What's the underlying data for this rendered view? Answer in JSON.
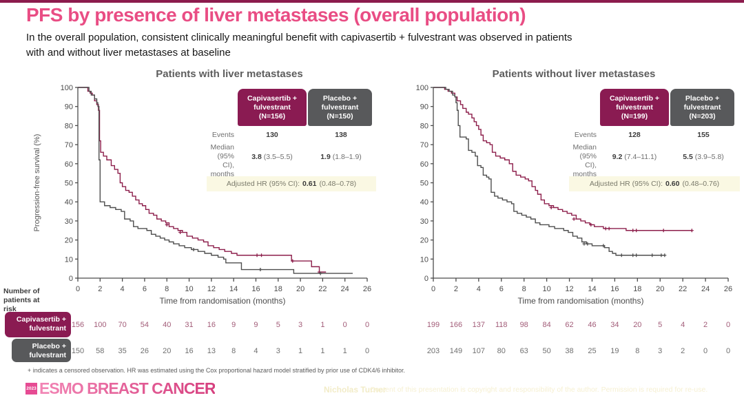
{
  "slide": {
    "title": "PFS by presence of liver metastases (overall population)",
    "subtitle": "In the overall population, consistent clinically meaningful benefit with capivasertib + fulvestrant was observed in patients\nwith and without liver metastases at baseline"
  },
  "colors": {
    "accent_maroon": "#8a1b52",
    "accent_gray": "#58595b",
    "title_pink": "#e94d84",
    "hr_band_bg": "#faf8e3",
    "logo_pink": "#e64b93"
  },
  "labels": {
    "number_at_risk": "Number of\npatients at risk",
    "arm1_box": "Capivasertib +\nfulvestrant",
    "arm2_box": "Placebo +\nfulvestrant"
  },
  "chart_data": [
    {
      "type": "line",
      "subtype": "kaplan-meier",
      "title": "Patients with liver metastases",
      "xlabel": "Time from randomisation (months)",
      "ylabel": "Progression-free survival (%)",
      "xlim": [
        0,
        26
      ],
      "ylim": [
        0,
        100
      ],
      "xticks": [
        0,
        2,
        4,
        6,
        8,
        10,
        12,
        14,
        16,
        18,
        20,
        22,
        24,
        26
      ],
      "yticks": [
        0,
        10,
        20,
        30,
        40,
        50,
        60,
        70,
        80,
        90,
        100
      ],
      "grid": false,
      "table": {
        "col1_header": "Capivasertib +\nfulvestrant\n(N=156)",
        "col2_header": "Placebo +\nfulvestrant\n(N=150)",
        "events_label": "Events",
        "events": [
          "130",
          "138"
        ],
        "median_label": "Median\n(95% CI),\nmonths",
        "median": [
          {
            "value": "3.8",
            "ci": "(3.5–5.5)"
          },
          {
            "value": "1.9",
            "ci": "(1.8–1.9)"
          }
        ],
        "hr_label": "Adjusted HR (95% CI):",
        "hr_value": "0.61",
        "hr_ci": "(0.48–0.78)"
      },
      "series": [
        {
          "name": "Capivasertib + fulvestrant",
          "color": "#8c1d4a",
          "points": [
            [
              0,
              100
            ],
            [
              0.7,
              100
            ],
            [
              0.9,
              98
            ],
            [
              1.1,
              97
            ],
            [
              1.3,
              96
            ],
            [
              1.5,
              93
            ],
            [
              1.7,
              91
            ],
            [
              1.85,
              88
            ],
            [
              1.95,
              72
            ],
            [
              2.05,
              66
            ],
            [
              2.3,
              64
            ],
            [
              2.6,
              62
            ],
            [
              3.0,
              59
            ],
            [
              3.3,
              57
            ],
            [
              3.6,
              55
            ],
            [
              3.8,
              50
            ],
            [
              4.0,
              48
            ],
            [
              4.3,
              46
            ],
            [
              4.6,
              45
            ],
            [
              4.9,
              43
            ],
            [
              5.2,
              41
            ],
            [
              5.5,
              39
            ],
            [
              5.8,
              38
            ],
            [
              6.1,
              36
            ],
            [
              6.4,
              34
            ],
            [
              6.8,
              33
            ],
            [
              7.1,
              31
            ],
            [
              7.5,
              30
            ],
            [
              7.9,
              29
            ],
            [
              8.2,
              27
            ],
            [
              8.6,
              26
            ],
            [
              9.0,
              25
            ],
            [
              9.4,
              24
            ],
            [
              9.8,
              22
            ],
            [
              10.3,
              21
            ],
            [
              10.8,
              20
            ],
            [
              11.3,
              19
            ],
            [
              11.7,
              17
            ],
            [
              12.2,
              16
            ],
            [
              12.7,
              15
            ],
            [
              13.2,
              14
            ],
            [
              13.8,
              13
            ],
            [
              14.3,
              12
            ],
            [
              19.0,
              12
            ],
            [
              19.2,
              9
            ],
            [
              20.9,
              9
            ],
            [
              21.0,
              6
            ],
            [
              21.6,
              6
            ],
            [
              21.7,
              3.2
            ],
            [
              22.3,
              3.2
            ]
          ],
          "censors": [
            [
              8.0,
              28
            ],
            [
              9.2,
              24
            ],
            [
              16.1,
              12
            ],
            [
              16.5,
              12
            ],
            [
              19.3,
              9
            ],
            [
              21.7,
              3.2
            ]
          ]
        },
        {
          "name": "Placebo + fulvestrant",
          "color": "#4d4d4d",
          "points": [
            [
              0,
              100
            ],
            [
              0.8,
              100
            ],
            [
              1.0,
              98
            ],
            [
              1.2,
              96
            ],
            [
              1.5,
              94
            ],
            [
              1.7,
              92
            ],
            [
              1.8,
              90
            ],
            [
              1.9,
              62
            ],
            [
              2.0,
              40
            ],
            [
              2.4,
              38
            ],
            [
              2.9,
              37
            ],
            [
              3.4,
              36
            ],
            [
              3.9,
              35
            ],
            [
              4.2,
              31
            ],
            [
              4.7,
              30
            ],
            [
              5.0,
              27
            ],
            [
              5.4,
              26
            ],
            [
              6.2,
              25
            ],
            [
              6.6,
              23
            ],
            [
              7.0,
              22
            ],
            [
              7.4,
              21
            ],
            [
              7.8,
              20
            ],
            [
              8.2,
              19
            ],
            [
              8.6,
              18
            ],
            [
              9.1,
              17
            ],
            [
              9.6,
              16
            ],
            [
              10.2,
              15
            ],
            [
              10.8,
              14
            ],
            [
              11.4,
              13
            ],
            [
              12.0,
              12
            ],
            [
              12.6,
              11
            ],
            [
              13.1,
              10
            ],
            [
              13.3,
              8
            ],
            [
              14.6,
              8
            ],
            [
              14.7,
              4.5
            ],
            [
              19.3,
              4.5
            ],
            [
              19.4,
              2.5
            ],
            [
              24.7,
              2.5
            ]
          ],
          "censors": [
            [
              10.4,
              15
            ],
            [
              16.4,
              4.5
            ],
            [
              21.8,
              2.5
            ]
          ]
        }
      ],
      "at_risk": {
        "rows": [
          {
            "name": "Capivasertib + fulvestrant",
            "color": "#a25c78",
            "counts": [
              "156",
              "100",
              "70",
              "54",
              "40",
              "31",
              "16",
              "9",
              "9",
              "5",
              "3",
              "1",
              "0",
              "0"
            ]
          },
          {
            "name": "Placebo + fulvestrant",
            "color": "#707070",
            "counts": [
              "150",
              "58",
              "35",
              "26",
              "20",
              "16",
              "13",
              "8",
              "4",
              "3",
              "1",
              "1",
              "1",
              "0"
            ]
          }
        ]
      }
    },
    {
      "type": "line",
      "subtype": "kaplan-meier",
      "title": "Patients without liver metastases",
      "xlabel": "Time from randomisation (months)",
      "ylabel": "",
      "xlim": [
        0,
        26
      ],
      "ylim": [
        0,
        100
      ],
      "xticks": [
        0,
        2,
        4,
        6,
        8,
        10,
        12,
        14,
        16,
        18,
        20,
        22,
        24,
        26
      ],
      "yticks": [
        0,
        10,
        20,
        30,
        40,
        50,
        60,
        70,
        80,
        90,
        100
      ],
      "grid": false,
      "table": {
        "col1_header": "Capivasertib +\nfulvestrant\n(N=199)",
        "col2_header": "Placebo +\nfulvestrant\n(N=203)",
        "events_label": "Events",
        "events": [
          "128",
          "155"
        ],
        "median_label": "Median\n(95% CI),\nmonths",
        "median": [
          {
            "value": "9.2",
            "ci": "(7.4–11.1)"
          },
          {
            "value": "5.5",
            "ci": "(3.9–5.8)"
          }
        ],
        "hr_label": "Adjusted HR (95% CI):",
        "hr_value": "0.60",
        "hr_ci": "(0.48–0.76)"
      },
      "series": [
        {
          "name": "Capivasertib + fulvestrant",
          "color": "#8c1d4a",
          "points": [
            [
              0,
              100
            ],
            [
              0.8,
              100
            ],
            [
              1.0,
              99
            ],
            [
              1.3,
              98
            ],
            [
              1.6,
              97
            ],
            [
              1.9,
              95
            ],
            [
              2.1,
              93
            ],
            [
              2.4,
              91
            ],
            [
              2.6,
              89
            ],
            [
              2.9,
              87
            ],
            [
              3.1,
              86
            ],
            [
              3.4,
              84
            ],
            [
              3.6,
              82
            ],
            [
              3.8,
              80
            ],
            [
              4.0,
              78
            ],
            [
              4.2,
              75
            ],
            [
              4.4,
              72
            ],
            [
              4.7,
              71
            ],
            [
              5.0,
              70
            ],
            [
              5.2,
              66
            ],
            [
              5.5,
              64
            ],
            [
              5.9,
              63
            ],
            [
              6.3,
              62
            ],
            [
              6.7,
              60
            ],
            [
              7.0,
              56
            ],
            [
              7.3,
              54
            ],
            [
              7.7,
              53
            ],
            [
              8.1,
              52
            ],
            [
              8.4,
              51
            ],
            [
              8.7,
              48
            ],
            [
              9.0,
              46
            ],
            [
              9.2,
              44
            ],
            [
              9.5,
              41
            ],
            [
              9.8,
              39
            ],
            [
              10.2,
              38
            ],
            [
              10.6,
              37
            ],
            [
              11.0,
              36
            ],
            [
              11.4,
              35
            ],
            [
              11.8,
              34
            ],
            [
              12.2,
              33
            ],
            [
              12.6,
              31
            ],
            [
              13.0,
              30
            ],
            [
              13.4,
              29
            ],
            [
              13.8,
              28
            ],
            [
              14.2,
              27
            ],
            [
              15.0,
              26
            ],
            [
              17.0,
              25
            ],
            [
              22.8,
              25
            ]
          ],
          "censors": [
            [
              10.4,
              37
            ],
            [
              12.4,
              31
            ],
            [
              13.9,
              28
            ],
            [
              15.2,
              26
            ],
            [
              15.5,
              26
            ],
            [
              17.6,
              25
            ],
            [
              17.9,
              25
            ],
            [
              20.3,
              25
            ],
            [
              22.8,
              25
            ]
          ]
        },
        {
          "name": "Placebo + fulvestrant",
          "color": "#4d4d4d",
          "points": [
            [
              0,
              100
            ],
            [
              0.9,
              100
            ],
            [
              1.1,
              99
            ],
            [
              1.4,
              98
            ],
            [
              1.7,
              96
            ],
            [
              1.9,
              95
            ],
            [
              2.0,
              92
            ],
            [
              2.1,
              88
            ],
            [
              2.2,
              80
            ],
            [
              2.35,
              74
            ],
            [
              2.9,
              73
            ],
            [
              3.1,
              67
            ],
            [
              3.4,
              66
            ],
            [
              3.7,
              64
            ],
            [
              3.9,
              59
            ],
            [
              4.2,
              58
            ],
            [
              4.4,
              54
            ],
            [
              4.7,
              53
            ],
            [
              4.9,
              52
            ],
            [
              5.1,
              45
            ],
            [
              5.4,
              43
            ],
            [
              5.7,
              42
            ],
            [
              6.1,
              41
            ],
            [
              6.5,
              40
            ],
            [
              6.9,
              39
            ],
            [
              7.1,
              35
            ],
            [
              7.4,
              34
            ],
            [
              7.8,
              33
            ],
            [
              8.2,
              32
            ],
            [
              8.6,
              31
            ],
            [
              9.0,
              29
            ],
            [
              9.4,
              28
            ],
            [
              10.2,
              27
            ],
            [
              10.7,
              26
            ],
            [
              11.5,
              25
            ],
            [
              11.9,
              24
            ],
            [
              12.3,
              22
            ],
            [
              12.7,
              21
            ],
            [
              13.1,
              19
            ],
            [
              13.5,
              18
            ],
            [
              14.0,
              17
            ],
            [
              15.1,
              16
            ],
            [
              15.5,
              14
            ],
            [
              15.8,
              13
            ],
            [
              16.1,
              12
            ],
            [
              20.4,
              12
            ]
          ],
          "censors": [
            [
              13.3,
              18
            ],
            [
              13.6,
              18
            ],
            [
              15.0,
              17
            ],
            [
              16.6,
              12
            ],
            [
              17.6,
              12
            ],
            [
              17.9,
              12
            ],
            [
              19.3,
              12
            ],
            [
              20.1,
              12
            ],
            [
              20.4,
              12
            ]
          ]
        }
      ],
      "at_risk": {
        "rows": [
          {
            "name": "Capivasertib + fulvestrant",
            "color": "#a25c78",
            "counts": [
              "199",
              "166",
              "137",
              "118",
              "98",
              "84",
              "62",
              "46",
              "34",
              "20",
              "5",
              "4",
              "2",
              "0"
            ]
          },
          {
            "name": "Placebo + fulvestrant",
            "color": "#707070",
            "counts": [
              "203",
              "149",
              "107",
              "80",
              "63",
              "50",
              "38",
              "25",
              "19",
              "8",
              "3",
              "2",
              "0",
              "0"
            ]
          }
        ]
      }
    }
  ],
  "footnote": "+ indicates a censored observation. HR was estimated using the Cox proportional hazard model stratified by prior use of CDK4/6 inhibitor.",
  "footer": {
    "logo_year": "2023",
    "logo_text": "ESMO BREAST CANCER",
    "author": "Nicholas Turner",
    "copyright": "Content of this presentation is copyright and responsibility of the author. Permission is required for re-use."
  }
}
